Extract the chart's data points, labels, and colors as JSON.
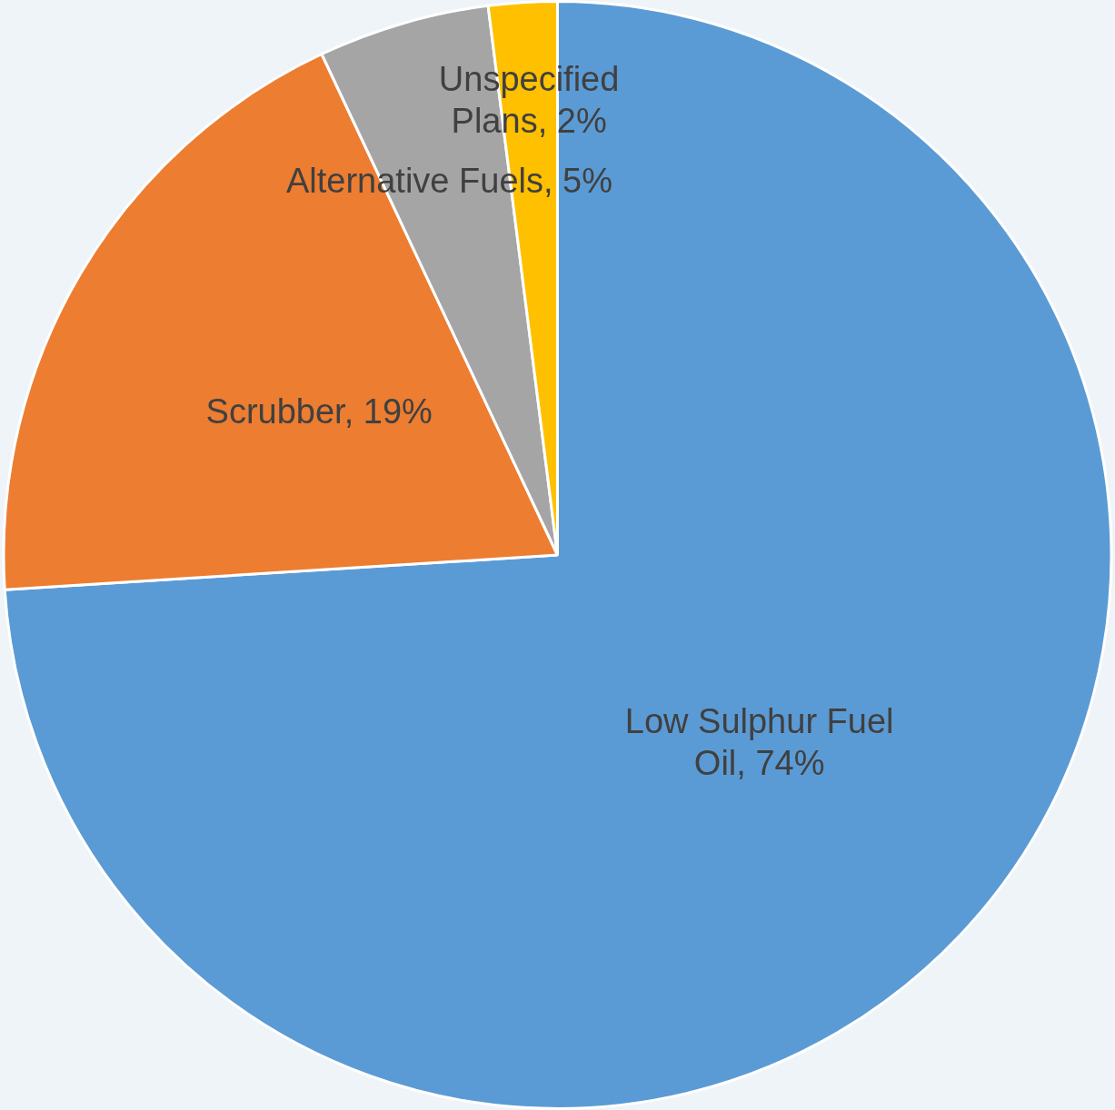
{
  "chart_data": {
    "type": "pie",
    "categories": [
      "Low Sulphur Fuel Oil",
      "Scrubber",
      "Alternative Fuels",
      "Unspecified Plans"
    ],
    "values": [
      74,
      19,
      5,
      2
    ],
    "value_labels": [
      "74%",
      "19%",
      "5%",
      "2%"
    ],
    "colors": [
      "#5b9bd5",
      "#ed7d31",
      "#a5a5a5",
      "#ffc000"
    ]
  }
}
